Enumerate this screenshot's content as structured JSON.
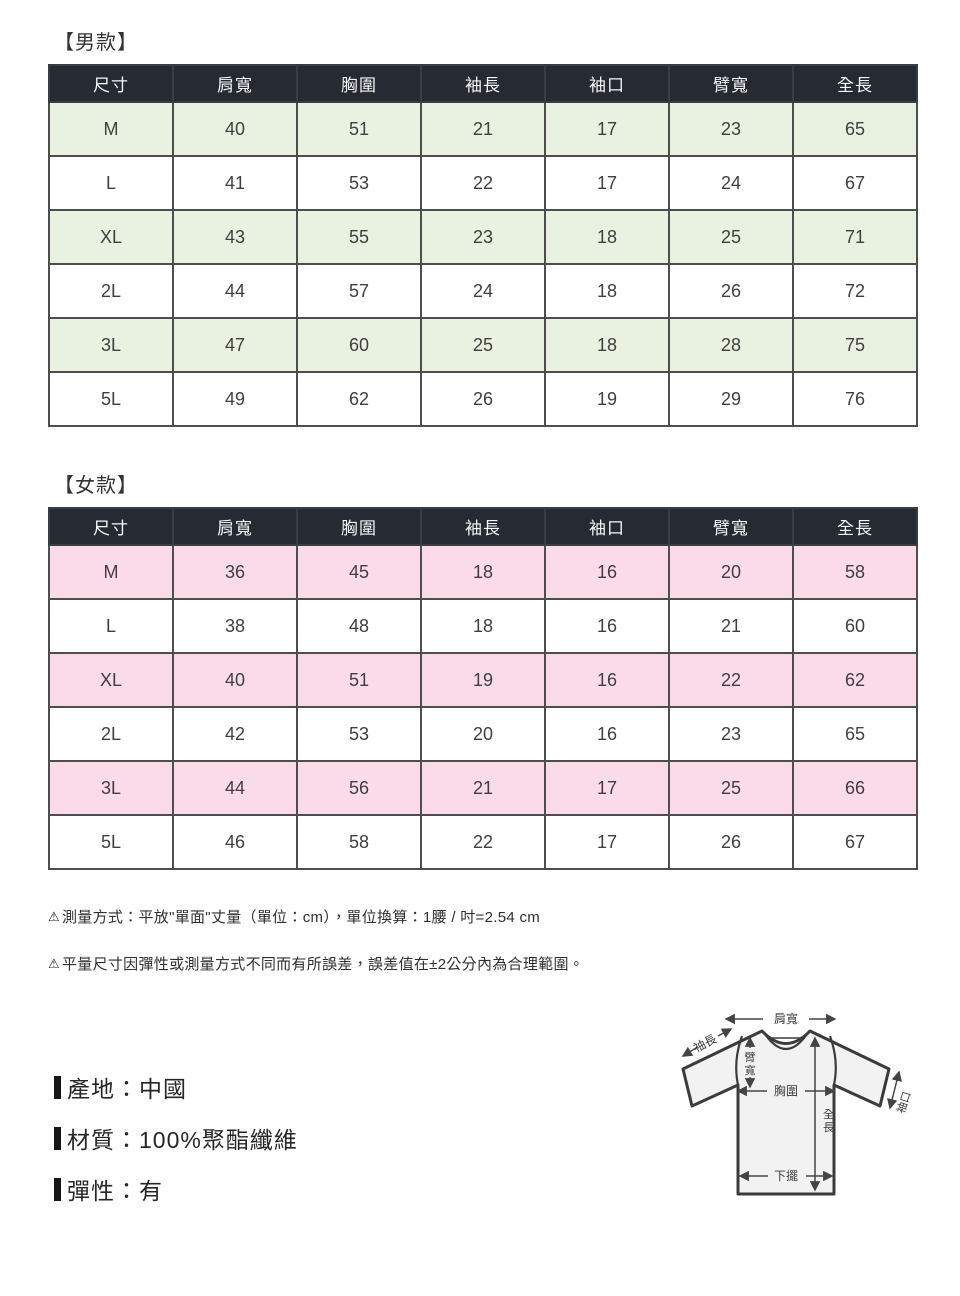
{
  "colors": {
    "header_bg": "#262a32",
    "men_stripe": "#e9f2e0",
    "women_stripe": "#fcdbe9",
    "border": "#4e4e4e"
  },
  "men_section": {
    "title": "【男款】",
    "table": {
      "headers": [
        "尺寸",
        "肩寬",
        "胸圍",
        "袖長",
        "袖口",
        "臂寬",
        "全長"
      ],
      "rows": [
        [
          "M",
          "40",
          "51",
          "21",
          "17",
          "23",
          "65"
        ],
        [
          "L",
          "41",
          "53",
          "22",
          "17",
          "24",
          "67"
        ],
        [
          "XL",
          "43",
          "55",
          "23",
          "18",
          "25",
          "71"
        ],
        [
          "2L",
          "44",
          "57",
          "24",
          "18",
          "26",
          "72"
        ],
        [
          "3L",
          "47",
          "60",
          "25",
          "18",
          "28",
          "75"
        ],
        [
          "5L",
          "49",
          "62",
          "26",
          "19",
          "29",
          "76"
        ]
      ]
    }
  },
  "women_section": {
    "title": "【女款】",
    "table": {
      "headers": [
        "尺寸",
        "肩寬",
        "胸圍",
        "袖長",
        "袖口",
        "臂寬",
        "全長"
      ],
      "rows": [
        [
          "M",
          "36",
          "45",
          "18",
          "16",
          "20",
          "58"
        ],
        [
          "L",
          "38",
          "48",
          "18",
          "16",
          "21",
          "60"
        ],
        [
          "XL",
          "40",
          "51",
          "19",
          "16",
          "22",
          "62"
        ],
        [
          "2L",
          "42",
          "53",
          "20",
          "16",
          "23",
          "65"
        ],
        [
          "3L",
          "44",
          "56",
          "21",
          "17",
          "25",
          "66"
        ],
        [
          "5L",
          "46",
          "58",
          "22",
          "17",
          "26",
          "67"
        ]
      ]
    }
  },
  "notes": [
    {
      "icon": "⚠",
      "text": "測量方式：平放\"單面\"丈量（單位：cm），單位換算：1腰 / 吋=2.54 cm"
    },
    {
      "icon": "⚠",
      "text": "平量尺寸因彈性或測量方式不同而有所誤差，誤差值在±2公分內為合理範圍。"
    }
  ],
  "product_info": [
    {
      "text": "產地：中國"
    },
    {
      "text": "材質：100%聚酯纖維"
    },
    {
      "text": "彈性：有"
    }
  ],
  "diagram": {
    "labels": {
      "shoulder": "肩寬",
      "sleeve_length": "袖長",
      "arm_width": "臂寬",
      "chest": "胸圍",
      "cuff": "袖口",
      "total_length": "全長",
      "hem": "下擺"
    }
  }
}
